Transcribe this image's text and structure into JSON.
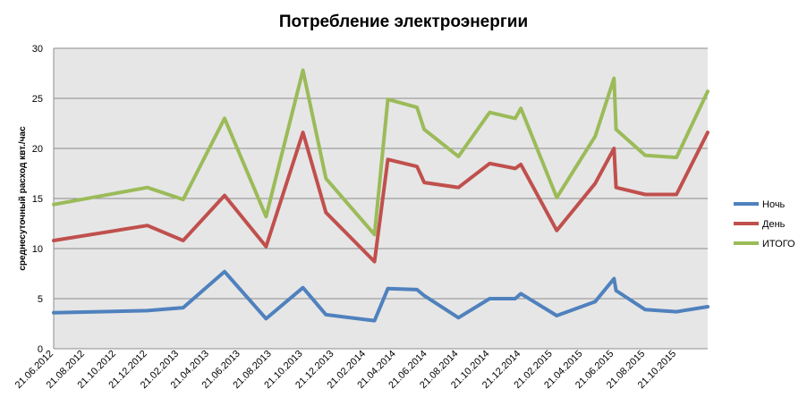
{
  "chart_data": {
    "type": "line",
    "title": "Потребление электроэнергии",
    "xlabel": "",
    "ylabel": "среднесуточный расход квт./час",
    "ylim": [
      0,
      30
    ],
    "yticks": [
      0,
      5,
      10,
      15,
      20,
      25,
      30
    ],
    "x_ticks": [
      "21.06.2012",
      "21.08.2012",
      "21.10.2012",
      "21.12.2012",
      "21.02.2013",
      "21.04.2013",
      "21.06.2013",
      "21.08.2013",
      "21.10.2013",
      "21.12.2013",
      "21.02.2014",
      "21.04.2014",
      "21.06.2014",
      "21.08.2014",
      "21.10.2014",
      "21.12.2014",
      "21.02.2015",
      "21.04.2015",
      "21.06.2015",
      "21.08.2015",
      "21.10.2015"
    ],
    "xlim": [
      "2012-06-21",
      "2015-12-21"
    ],
    "grid": true,
    "legend_position": "right",
    "x": [
      "2012-06-21",
      "2012-12-21",
      "2013-03-01",
      "2013-05-21",
      "2013-08-10",
      "2013-10-21",
      "2013-12-05",
      "2014-03-10",
      "2014-04-05",
      "2014-06-01",
      "2014-06-15",
      "2014-08-21",
      "2014-10-21",
      "2014-12-10",
      "2014-12-21",
      "2015-03-01",
      "2015-05-15",
      "2015-06-21",
      "2015-06-25",
      "2015-08-21",
      "2015-10-21",
      "2015-12-21"
    ],
    "series": [
      {
        "name": "Ночь",
        "color": "#4f81bd",
        "values": [
          3.6,
          3.8,
          4.1,
          7.7,
          3.0,
          6.1,
          3.4,
          2.8,
          6.0,
          5.9,
          5.3,
          3.1,
          5.0,
          5.0,
          5.5,
          3.3,
          4.7,
          7.0,
          5.8,
          3.9,
          3.7,
          4.2
        ]
      },
      {
        "name": "День",
        "color": "#c0504d",
        "values": [
          10.8,
          12.3,
          10.8,
          15.3,
          10.2,
          21.6,
          13.6,
          8.7,
          18.9,
          18.2,
          16.6,
          16.1,
          18.5,
          18.0,
          18.4,
          11.8,
          16.5,
          20.0,
          16.1,
          15.4,
          15.4,
          21.6
        ]
      },
      {
        "name": "ИТОГО",
        "color": "#9bbb59",
        "values": [
          14.4,
          16.1,
          14.9,
          23.0,
          13.2,
          27.8,
          17.0,
          11.4,
          24.9,
          24.1,
          21.9,
          19.2,
          23.6,
          23.0,
          24.0,
          15.1,
          21.2,
          27.0,
          21.9,
          19.3,
          19.1,
          25.7
        ]
      }
    ]
  }
}
